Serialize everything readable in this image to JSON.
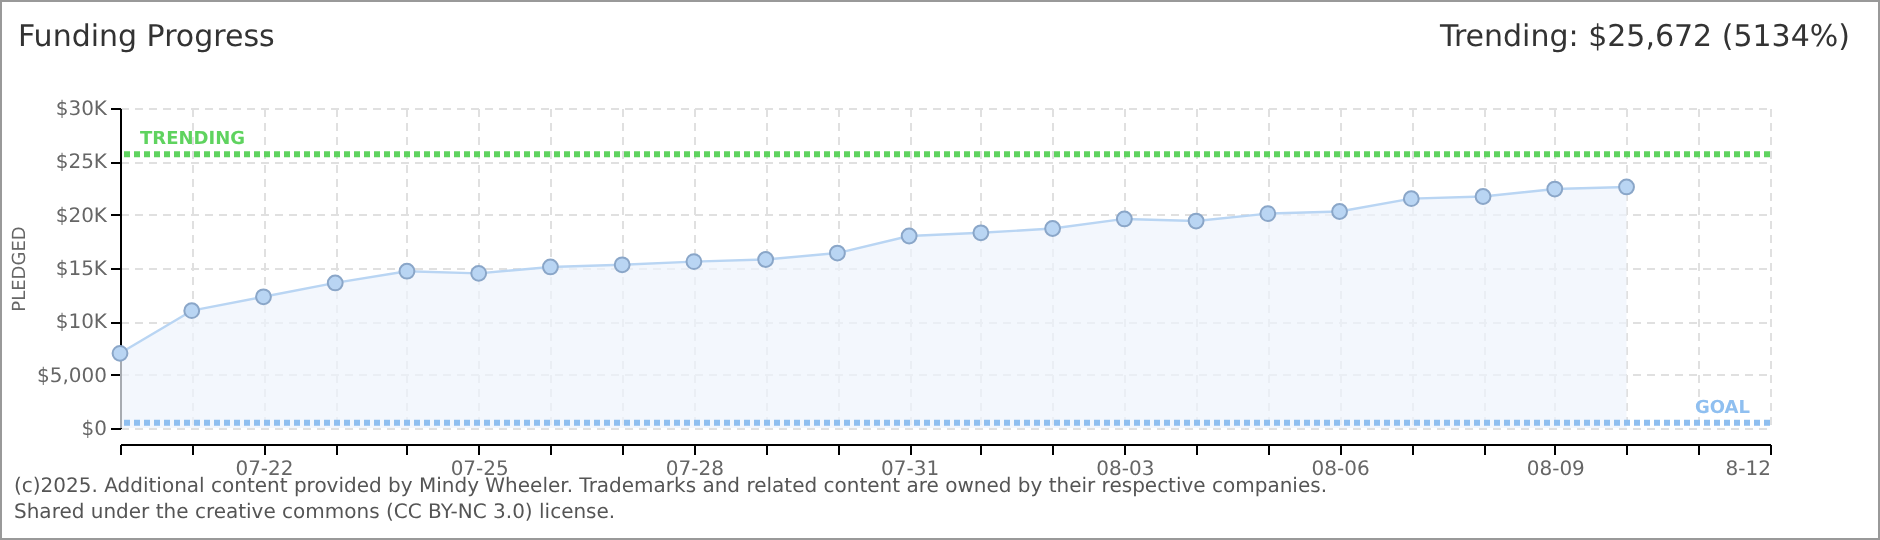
{
  "chart_data": {
    "type": "area",
    "title": "Funding Progress",
    "ylabel": "PLEDGED",
    "annotations": [
      "Trending: $25,672 (5134%)",
      "(c)2025. Additional content provided by Mindy Wheeler. Trademarks and related content are owned by their respective companies.",
      "Shared under the creative commons (CC BY-NC 3.0) license."
    ],
    "x": [
      "--07-20",
      "--07-21",
      "--07-22",
      "--07-23",
      "--07-24",
      "--07-25",
      "--07-26",
      "--07-27",
      "--07-28",
      "--07-29",
      "--07-30",
      "--07-31",
      "--08-01",
      "--08-02",
      "--08-03",
      "--08-04",
      "--08-05",
      "--08-06",
      "--08-07",
      "--08-08",
      "--08-09",
      "--08-10"
    ],
    "series": [
      {
        "color": "#b9d5f3",
        "values": [
          7000,
          11000,
          12300,
          13600,
          14700,
          14500,
          15100,
          15300,
          15600,
          15800,
          16400,
          18000,
          18300,
          18700,
          19600,
          19400,
          20100,
          20300,
          21500,
          21700,
          22400,
          22600
        ]
      }
    ],
    "marker": "circle",
    "grid": true,
    "xlim": [
      "--07-20",
      "--08-12"
    ],
    "xticks": [
      {
        "value": "--07-20",
        "label": null
      },
      {
        "value": "--07-21",
        "label": null
      },
      {
        "value": "--07-22",
        "label": "07-22"
      },
      {
        "value": "--07-23",
        "label": null
      },
      {
        "value": "--07-24",
        "label": null
      },
      {
        "value": "--07-25",
        "label": "07-25"
      },
      {
        "value": "--07-26",
        "label": null
      },
      {
        "value": "--07-27",
        "label": null
      },
      {
        "value": "--07-28",
        "label": "07-28"
      },
      {
        "value": "--07-29",
        "label": null
      },
      {
        "value": "--07-30",
        "label": null
      },
      {
        "value": "--07-31",
        "label": "07-31"
      },
      {
        "value": "--08-01",
        "label": null
      },
      {
        "value": "--08-02",
        "label": null
      },
      {
        "value": "--08-03",
        "label": "08-03"
      },
      {
        "value": "--08-04",
        "label": null
      },
      {
        "value": "--08-05",
        "label": null
      },
      {
        "value": "--08-06",
        "label": "08-06"
      },
      {
        "value": "--08-07",
        "label": null
      },
      {
        "value": "--08-08",
        "label": null
      },
      {
        "value": "--08-09",
        "label": "08-09"
      },
      {
        "value": "--08-10",
        "label": null
      },
      {
        "value": "--08-11",
        "label": null
      },
      {
        "value": "--08-12",
        "label": "8-12"
      }
    ],
    "ylim": [
      0,
      30000
    ],
    "yticks": [
      {
        "value": 0,
        "label": "$0"
      },
      {
        "value": 5000,
        "label": "$5,000"
      },
      {
        "value": 10000,
        "label": "$10K"
      },
      {
        "value": 15000,
        "label": "$15K"
      },
      {
        "value": 20000,
        "label": "$20K"
      },
      {
        "value": 25000,
        "label": "$25K"
      },
      {
        "value": 30000,
        "label": "$30K"
      }
    ],
    "ref_lines": [
      {
        "axis": "y",
        "value": 25672,
        "label": "TRENDING",
        "color": "#5fd35f",
        "line_style": "dotted"
      },
      {
        "axis": "y",
        "value": 500,
        "label": "GOAL",
        "color": "#8fbff0",
        "line_style": "dotted"
      }
    ]
  }
}
